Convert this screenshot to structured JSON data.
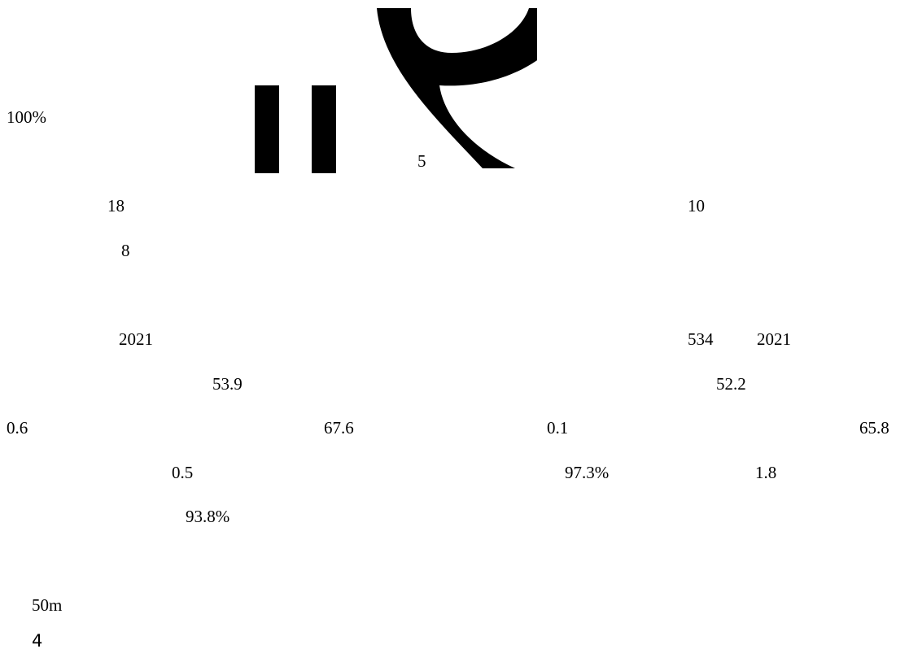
{
  "colors": {
    "ink": "#000000",
    "paper": "#ffffff"
  },
  "graphic": {
    "icon": "large-glyph-fragment"
  },
  "texts": {
    "pct_100": "100%",
    "n5": "5",
    "n18": "18",
    "n10": "10",
    "n8": "8",
    "year_left": "2021",
    "n534": "534",
    "year_right": "2021",
    "v53_9": "53.9",
    "v52_2": "52.2",
    "v0_6": "0.6",
    "v67_6": "67.6",
    "v0_1": "0.1",
    "v65_8": "65.8",
    "v0_5": "0.5",
    "pct_97_3": "97.3%",
    "v1_8": "1.8",
    "pct_93_8": "93.8%",
    "dist_50m": "50m",
    "page_number": "4"
  }
}
